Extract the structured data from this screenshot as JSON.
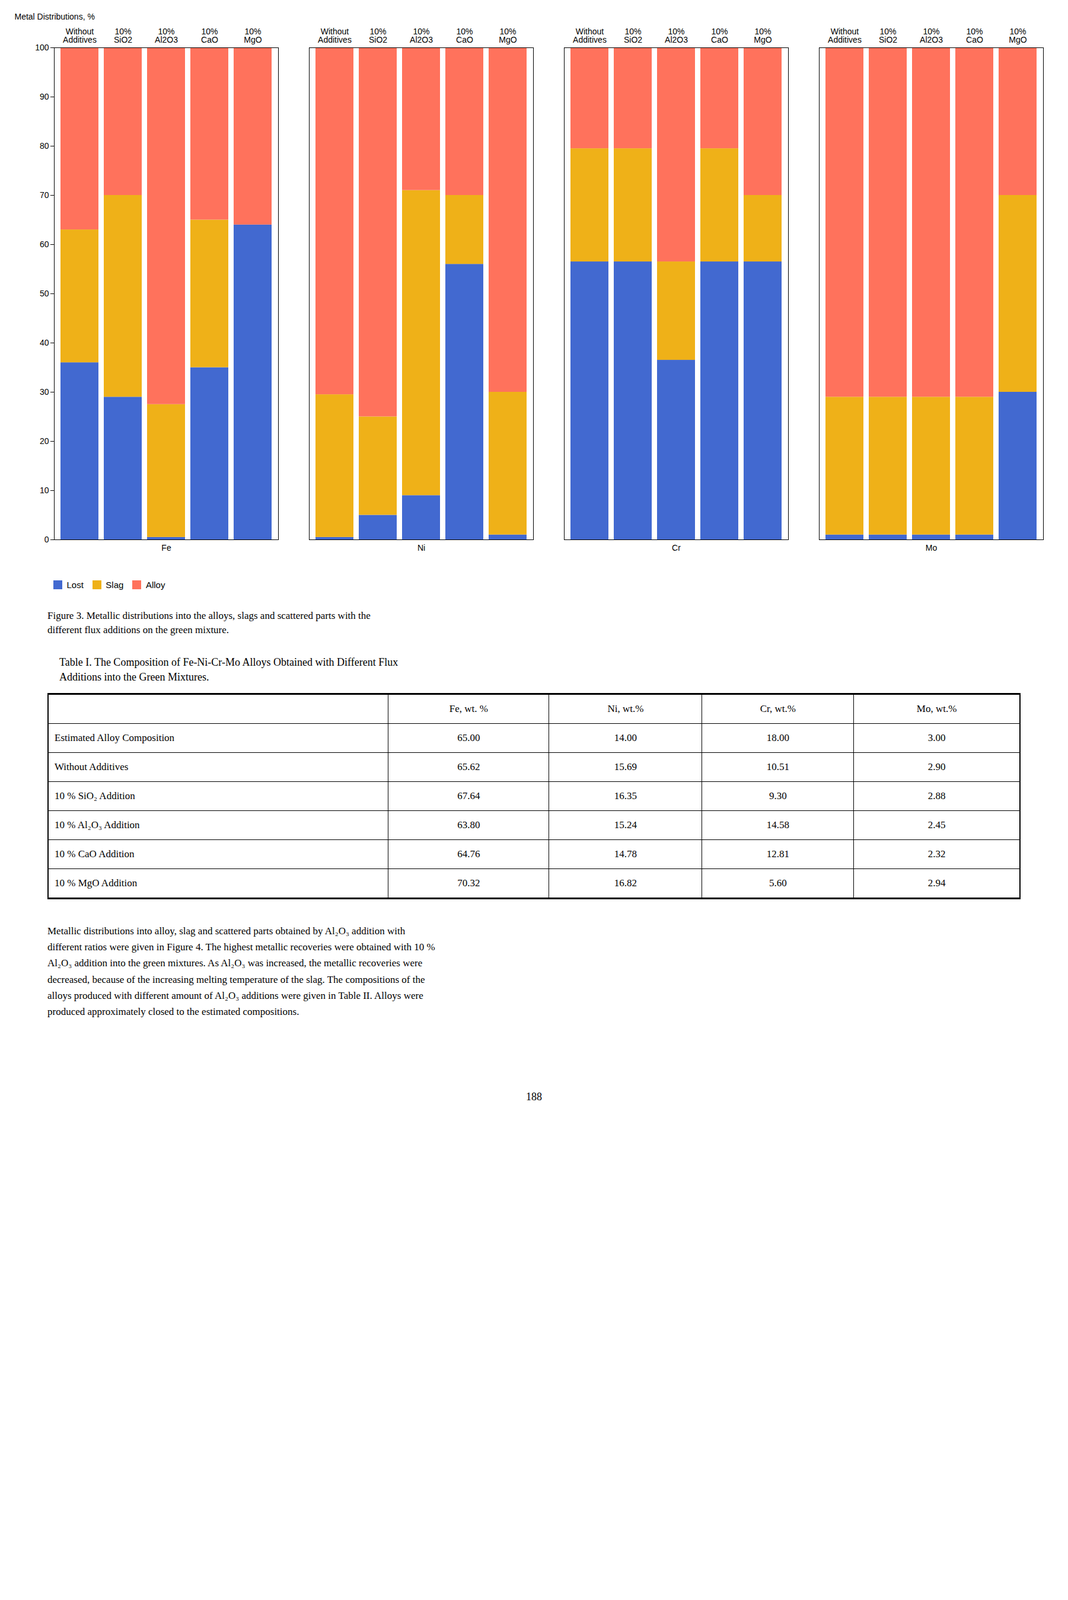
{
  "chart_data": {
    "type": "bar",
    "stacked": true,
    "groups": [
      "Fe",
      "Ni",
      "Cr",
      "Mo"
    ],
    "categories": [
      "Without\nAdditives",
      "10%\nSiO2",
      "10%\nAl2O3",
      "10%\nCaO",
      "10%\nMgO"
    ],
    "series": [
      {
        "name": "Lost",
        "values": [
          [
            36.0,
            29.0,
            0.5,
            35.0,
            64.0
          ],
          [
            0.5,
            5.0,
            9.0,
            56.0,
            1.0
          ],
          [
            56.5,
            56.5,
            36.5,
            56.5,
            56.5
          ],
          [
            1.0,
            1.0,
            1.0,
            1.0,
            30.0
          ]
        ]
      },
      {
        "name": "Slag",
        "values": [
          [
            27.0,
            41.0,
            27.0,
            30.0,
            0.0
          ],
          [
            29.0,
            20.0,
            62.0,
            14.0,
            29.0
          ],
          [
            23.0,
            23.0,
            20.0,
            23.0,
            13.5
          ],
          [
            28.0,
            28.0,
            28.0,
            28.0,
            40.0
          ]
        ]
      },
      {
        "name": "Alloy",
        "values": [
          [
            37.0,
            30.0,
            72.5,
            35.0,
            36.0
          ],
          [
            70.5,
            75.0,
            29.0,
            30.0,
            70.0
          ],
          [
            20.5,
            20.5,
            43.5,
            20.5,
            30.0
          ],
          [
            71.0,
            71.0,
            71.0,
            71.0,
            30.0
          ]
        ]
      }
    ],
    "ylabel": "Metal Distributions, %",
    "ylim": [
      0,
      100
    ],
    "yticks": [
      0,
      10,
      20,
      30,
      40,
      50,
      60,
      70,
      80,
      90,
      100
    ],
    "legend": "bottom",
    "grid": false
  },
  "figure_caption": "Figure 3. Metallic distributions into the alloys, slags and scattered parts with the\ndifferent flux additions on the green mixture.",
  "table": {
    "title": "Table I. The Composition of Fe-Ni-Cr-Mo Alloys Obtained with Different Flux\nAdditions into the Green Mixtures.",
    "headers": [
      "Fe, wt. %",
      "Ni, wt.%",
      "Cr, wt.%",
      "Mo, wt.%"
    ],
    "rows": [
      [
        "Estimated Alloy Composition",
        "65.00",
        "14.00",
        "18.00",
        "3.00"
      ],
      [
        "Without Additives",
        "65.62",
        "15.69",
        "10.51",
        "2.90"
      ],
      [
        "10 % SiO₂ Addition",
        "67.64",
        "16.35",
        "9.30",
        "2.88"
      ],
      [
        "10 % Al₂O₃ Addition",
        "63.80",
        "15.24",
        "14.58",
        "2.45"
      ],
      [
        "10 % CaO Addition",
        "64.76",
        "14.78",
        "12.81",
        "2.32"
      ],
      [
        "10 % MgO Addition",
        "70.32",
        "16.82",
        "5.60",
        "2.94"
      ]
    ]
  },
  "paragraph": "Metallic distributions into alloy, slag and scattered parts obtained by Al₂O₃ addition with\ndifferent ratios were given in Figure 4. The highest metallic recoveries were obtained with 10 %\nAl₂O₃ addition into the green mixtures. As Al₂O₃ was increased, the metallic recoveries were\ndecreased, because of the increasing melting temperature of the slag. The compositions of the\nalloys produced with different amount of Al₂O₃ additions were given in Table II. Alloys were\nproduced approximately closed to the estimated compositions.",
  "page_number": "188"
}
